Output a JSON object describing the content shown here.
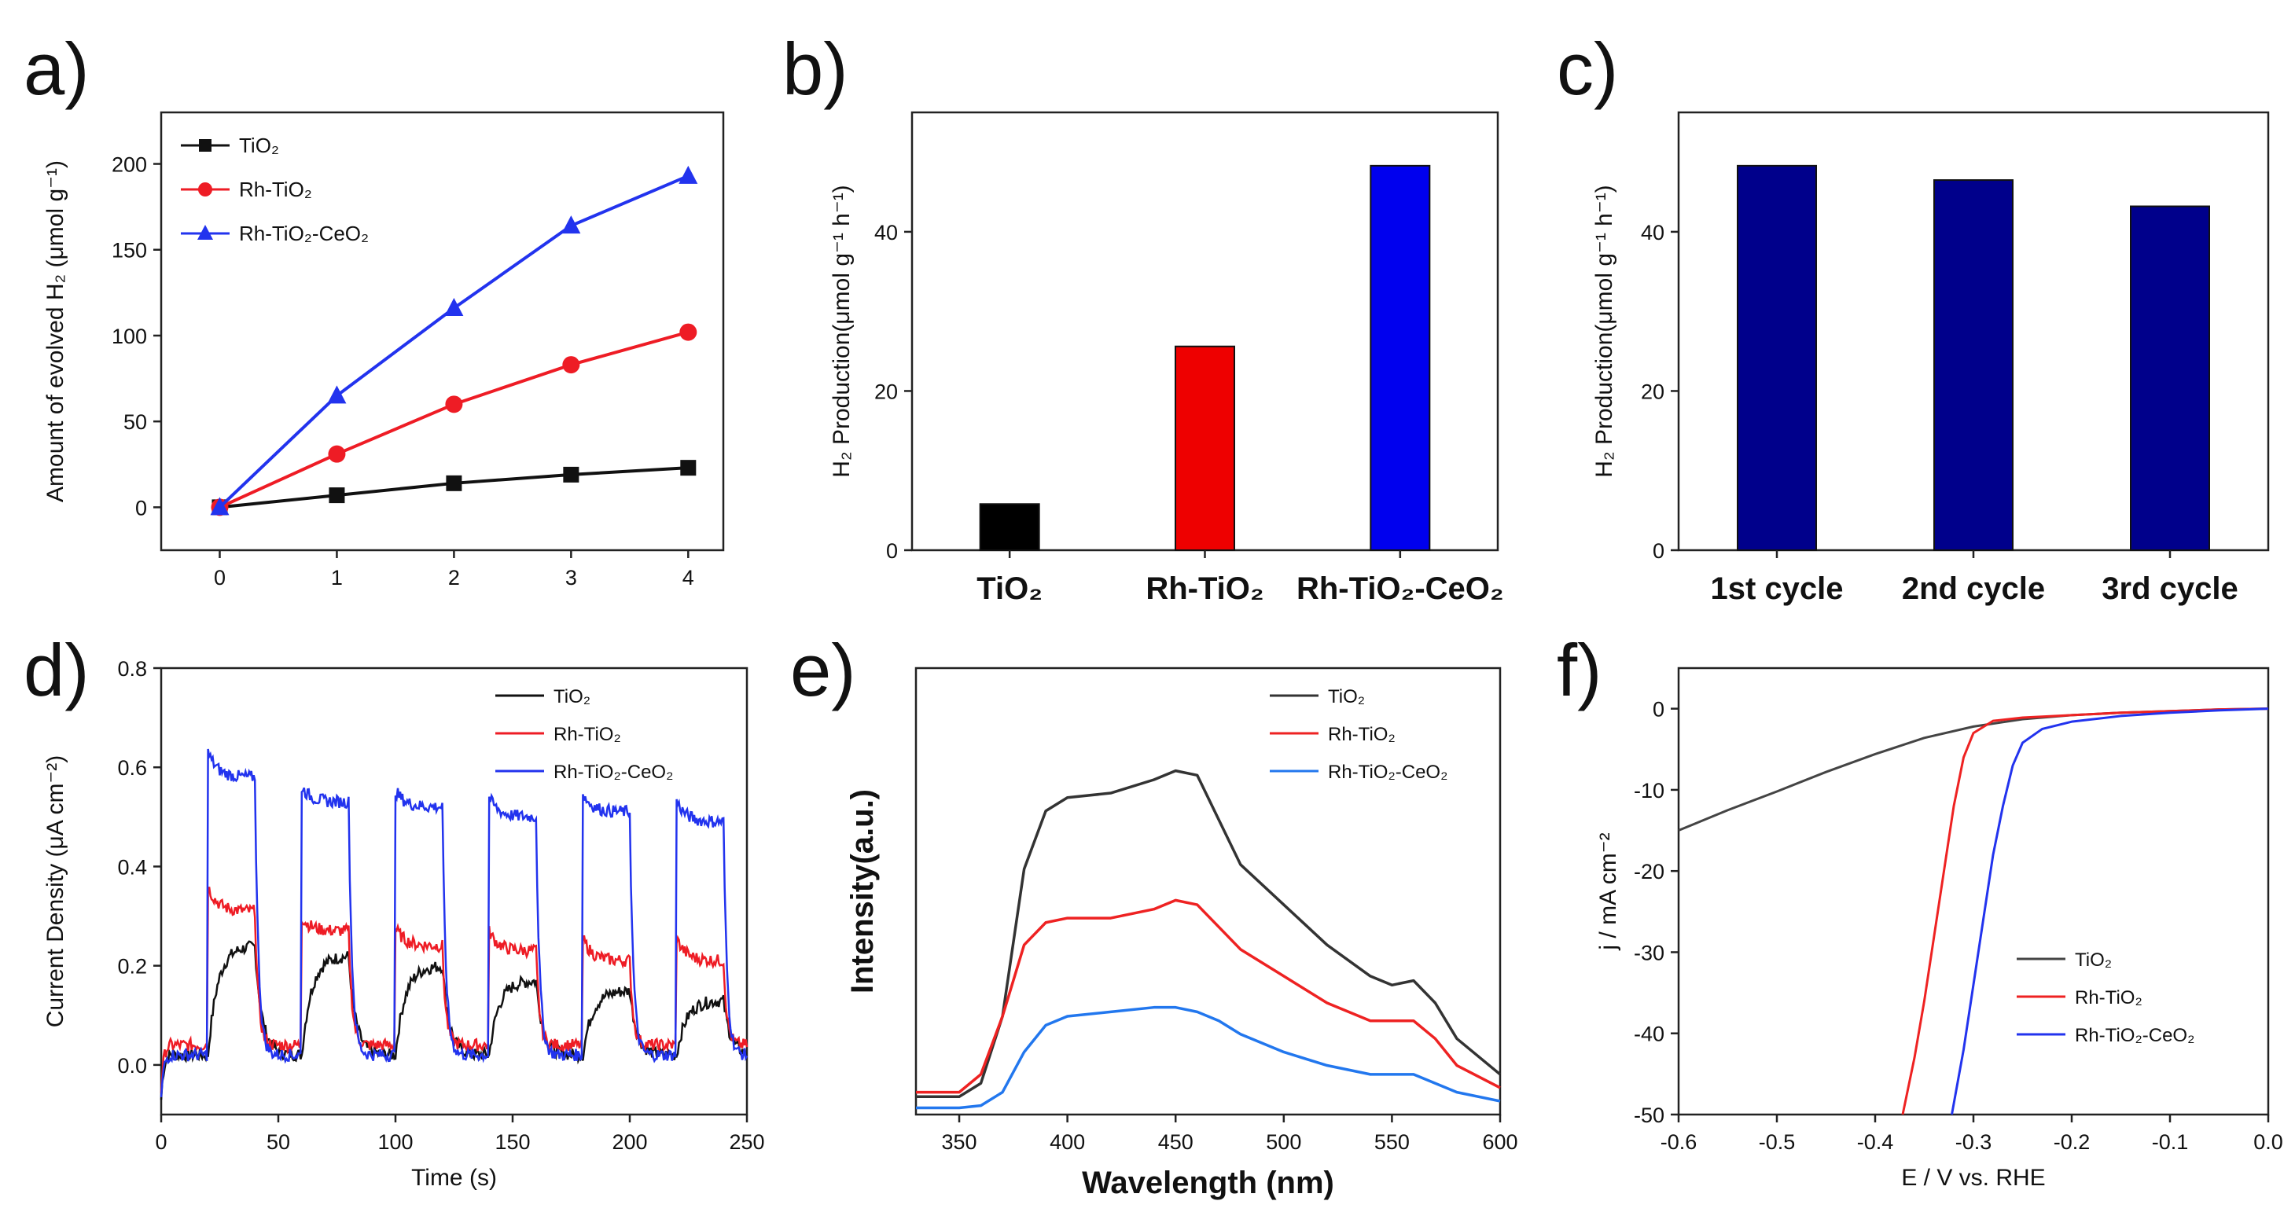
{
  "chart_data": [
    {
      "id": "a",
      "panel_label": "a)",
      "type": "line",
      "xlabel": "",
      "ylabel": "Amount of evolved H₂ (μmol g⁻¹)",
      "xlim": [
        -0.5,
        4.3
      ],
      "ylim": [
        -25,
        230
      ],
      "xticks": [
        0,
        1,
        2,
        3,
        4
      ],
      "yticks": [
        0,
        50,
        100,
        150,
        200
      ],
      "legend_position": "top-left",
      "x": [
        0,
        1,
        2,
        3,
        4
      ],
      "series": [
        {
          "name": "TiO₂",
          "color": "#111111",
          "marker": "square",
          "values": [
            0,
            7,
            14,
            19,
            23
          ]
        },
        {
          "name": "Rh-TiO₂",
          "color": "#ee1c25",
          "marker": "circle",
          "values": [
            0,
            31,
            60,
            83,
            102
          ]
        },
        {
          "name": "Rh-TiO₂-CeO₂",
          "color": "#2233ee",
          "marker": "triangle",
          "values": [
            0,
            65,
            116,
            164,
            193
          ]
        }
      ]
    },
    {
      "id": "b",
      "panel_label": "b)",
      "type": "bar",
      "ylabel": "H₂ Production(μmol g⁻¹ h⁻¹)",
      "ylim": [
        0,
        55
      ],
      "yticks": [
        0,
        20,
        40
      ],
      "categories": [
        "TiO₂",
        "Rh-TiO₂",
        "Rh-TiO₂-CeO₂"
      ],
      "values": [
        5.8,
        25.6,
        48.3
      ],
      "colors": [
        "#000000",
        "#ee0000",
        "#0000ee"
      ]
    },
    {
      "id": "c",
      "panel_label": "c)",
      "type": "bar",
      "ylabel": "H₂ Production(μmol g⁻¹ h⁻¹)",
      "ylim": [
        0,
        55
      ],
      "yticks": [
        0,
        20,
        40
      ],
      "categories": [
        "1st cycle",
        "2nd cycle",
        "3rd cycle"
      ],
      "values": [
        48.3,
        46.5,
        43.2
      ],
      "colors": [
        "#00008b",
        "#00008b",
        "#00008b"
      ]
    },
    {
      "id": "d",
      "panel_label": "d)",
      "type": "line",
      "xlabel": "Time (s)",
      "ylabel": "Current Density (μA cm⁻²)",
      "xlim": [
        0,
        250
      ],
      "ylim": [
        -0.1,
        0.8
      ],
      "xticks": [
        0,
        50,
        100,
        150,
        200,
        250
      ],
      "yticks": [
        0.0,
        0.2,
        0.4,
        0.6,
        0.8
      ],
      "legend_position": "top-right",
      "light_on_intervals": [
        [
          20,
          40
        ],
        [
          60,
          80
        ],
        [
          100,
          120
        ],
        [
          140,
          160
        ],
        [
          180,
          200
        ],
        [
          220,
          240
        ]
      ],
      "series": [
        {
          "name": "TiO₂",
          "color": "#111111",
          "dark": 0.02,
          "on_start": 0.13,
          "plateau": [
            0.24,
            0.22,
            0.2,
            0.17,
            0.15,
            0.13
          ]
        },
        {
          "name": "Rh-TiO₂",
          "color": "#ee1c25",
          "dark": 0.04,
          "on_start": 0.36,
          "plateau": [
            0.31,
            0.27,
            0.24,
            0.23,
            0.21,
            0.21
          ]
        },
        {
          "name": "Rh-TiO₂-CeO₂",
          "color": "#2233ee",
          "dark": 0.02,
          "on_start": 0.63,
          "plateau": [
            0.58,
            0.53,
            0.52,
            0.5,
            0.51,
            0.49
          ]
        }
      ]
    },
    {
      "id": "e",
      "panel_label": "e)",
      "type": "line",
      "xlabel": "Wavelength (nm)",
      "ylabel": "Intensity(a.u.)",
      "xlim": [
        330,
        600
      ],
      "ylim": [
        0,
        100
      ],
      "xticks": [
        350,
        400,
        450,
        500,
        550,
        600
      ],
      "legend_position": "top-right",
      "x": [
        330,
        350,
        360,
        370,
        380,
        390,
        400,
        420,
        440,
        450,
        460,
        470,
        480,
        500,
        520,
        540,
        550,
        560,
        570,
        580,
        600
      ],
      "series": [
        {
          "name": "TiO₂",
          "color": "#333333",
          "values": [
            4,
            4,
            7,
            22,
            55,
            68,
            71,
            72,
            75,
            77,
            76,
            66,
            56,
            47,
            38,
            31,
            29,
            30,
            25,
            17,
            9
          ]
        },
        {
          "name": "Rh-TiO₂",
          "color": "#ee2222",
          "values": [
            5,
            5,
            9,
            22,
            38,
            43,
            44,
            44,
            46,
            48,
            47,
            42,
            37,
            31,
            25,
            21,
            21,
            21,
            17,
            11,
            6
          ]
        },
        {
          "name": "Rh-TiO₂-CeO₂",
          "color": "#2277ee",
          "values": [
            1.5,
            1.5,
            2,
            5,
            14,
            20,
            22,
            23,
            24,
            24,
            23,
            21,
            18,
            14,
            11,
            9,
            9,
            9,
            7,
            5,
            3
          ]
        }
      ]
    },
    {
      "id": "f",
      "panel_label": "f)",
      "type": "line",
      "xlabel": "E / V vs. RHE",
      "ylabel": "j / mA cm⁻²",
      "xlim": [
        -0.6,
        0.0
      ],
      "ylim": [
        -50,
        5
      ],
      "xticks": [
        -0.6,
        -0.5,
        -0.4,
        -0.3,
        -0.2,
        -0.1,
        0.0
      ],
      "yticks": [
        0,
        -10,
        -20,
        -30,
        -40,
        -50
      ],
      "legend_position": "bottom-right",
      "series": [
        {
          "name": "TiO₂",
          "color": "#444444",
          "x": [
            -0.6,
            -0.55,
            -0.5,
            -0.45,
            -0.4,
            -0.35,
            -0.3,
            -0.25,
            -0.2,
            -0.15,
            -0.1,
            -0.05,
            0.0
          ],
          "values": [
            -15,
            -12.5,
            -10.2,
            -7.8,
            -5.6,
            -3.6,
            -2.2,
            -1.3,
            -0.8,
            -0.5,
            -0.3,
            -0.1,
            0
          ]
        },
        {
          "name": "Rh-TiO₂",
          "color": "#ee2222",
          "x": [
            -0.372,
            -0.36,
            -0.35,
            -0.34,
            -0.33,
            -0.32,
            -0.31,
            -0.3,
            -0.28,
            -0.25,
            -0.2,
            -0.15,
            -0.1,
            -0.05,
            0.0
          ],
          "values": [
            -50,
            -43,
            -36,
            -28,
            -20,
            -12,
            -6,
            -3,
            -1.5,
            -1.1,
            -0.8,
            -0.5,
            -0.3,
            -0.1,
            0
          ]
        },
        {
          "name": "Rh-TiO₂-CeO₂",
          "color": "#2233ee",
          "x": [
            -0.322,
            -0.31,
            -0.3,
            -0.29,
            -0.28,
            -0.27,
            -0.26,
            -0.25,
            -0.23,
            -0.2,
            -0.15,
            -0.1,
            -0.05,
            0.0
          ],
          "values": [
            -50,
            -42,
            -34,
            -26,
            -18,
            -12,
            -7,
            -4.2,
            -2.5,
            -1.6,
            -0.9,
            -0.5,
            -0.2,
            0
          ]
        }
      ]
    }
  ]
}
